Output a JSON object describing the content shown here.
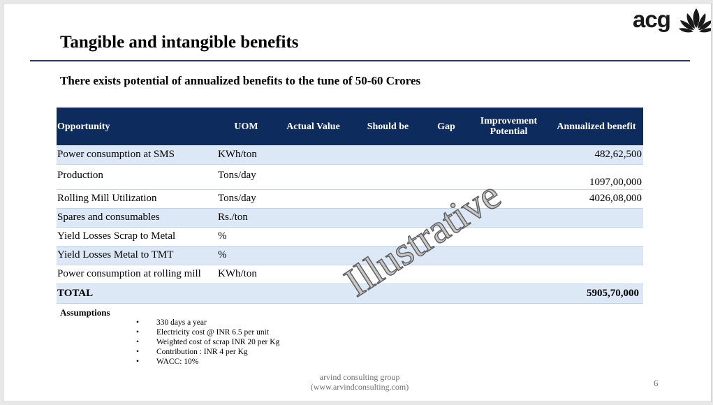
{
  "slide": {
    "title": "Tangible and intangible benefits",
    "subtitle": "There exists potential of annualized benefits to the tune of 50-60 Crores",
    "logo_text": "acg",
    "watermark": "Illustrative",
    "page_number": "6",
    "footer": {
      "line1": "arvind consulting group",
      "line2": "(www.arvindconsulting.com)"
    },
    "colors": {
      "header_fill": "#0d2b5c",
      "band_fill": "#dce8f5",
      "rule": "#1f3864"
    }
  },
  "table": {
    "headers": [
      "Opportunity",
      "UOM",
      "Actual Value",
      "Should be",
      "Gap",
      "Improvement Potential",
      "Annualized benefit"
    ],
    "rows": [
      {
        "opportunity": "Power consumption at SMS",
        "uom": "KWh/ton",
        "benefit": "482,62,500"
      },
      {
        "opportunity": "Production",
        "uom": "Tons/day",
        "benefit": "1097,00,000"
      },
      {
        "opportunity": "Rolling Mill Utilization",
        "uom": "Tons/day",
        "benefit": "4026,08,000"
      },
      {
        "opportunity": "Spares and consumables",
        "uom": "Rs./ton",
        "benefit": ""
      },
      {
        "opportunity": "Yield Losses Scrap to Metal",
        "uom": "%",
        "benefit": ""
      },
      {
        "opportunity": "Yield Losses Metal to TMT",
        "uom": "%",
        "benefit": ""
      },
      {
        "opportunity": "Power consumption at rolling mill",
        "uom": "KWh/ton",
        "benefit": ""
      }
    ],
    "total": {
      "label": "TOTAL",
      "value": "5905,70,000"
    }
  },
  "assumptions": {
    "title": "Assumptions",
    "items": [
      "330 days a year",
      "Electricity cost @ INR 6.5 per unit",
      "Weighted cost of scrap INR 20 per Kg",
      "Contribution : INR 4 per Kg",
      "WACC: 10%"
    ]
  }
}
